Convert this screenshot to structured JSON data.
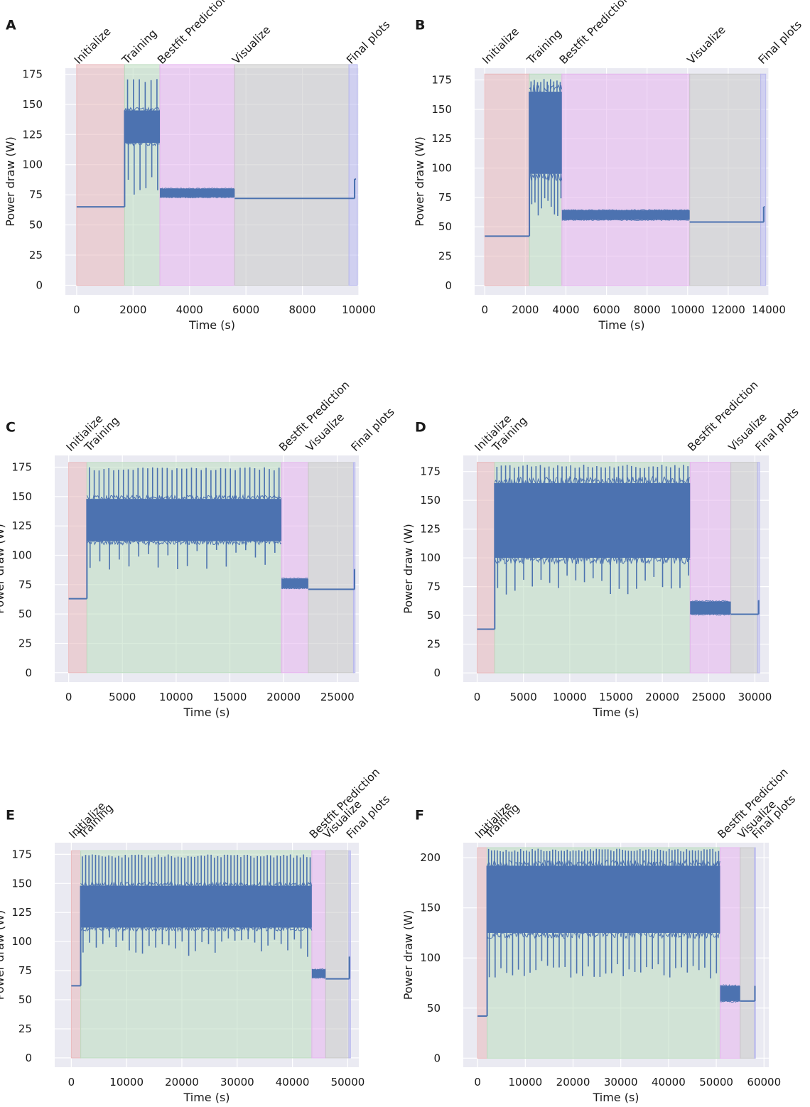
{
  "figure_title": "",
  "chart_data": [
    {
      "panel": "A",
      "type": "line",
      "xlabel": "Time (s)",
      "ylabel": "Power draw (W)",
      "xlim": [
        -400,
        10000
      ],
      "ylim": [
        -8,
        180
      ],
      "xticks": [
        0,
        2000,
        4000,
        6000,
        8000,
        10000
      ],
      "yticks": [
        0,
        25,
        50,
        75,
        100,
        125,
        150,
        175
      ],
      "phases": [
        {
          "label": "Initialize",
          "start": 0,
          "end": 1700,
          "color": "#e8b8bb"
        },
        {
          "label": "Training",
          "start": 1700,
          "end": 2950,
          "color": "#bcdcc0"
        },
        {
          "label": "Bestfit Prediction",
          "start": 2950,
          "end": 5600,
          "color": "#e6b4ee"
        },
        {
          "label": "Visualize",
          "start": 5600,
          "end": 9650,
          "color": "#c8c8c8"
        },
        {
          "label": "Final plots",
          "start": 9650,
          "end": 9950,
          "color": "#b9b9ee"
        }
      ],
      "phase_top": 183,
      "series": [
        {
          "name": "Power draw",
          "segments": [
            {
              "kind": "flat",
              "start": 0,
              "end": 1700,
              "value": 65
            },
            {
              "kind": "band",
              "start": 1700,
              "end": 2950,
              "low": 118,
              "high": 145,
              "spike_max": 171,
              "spike_min": 72,
              "n_spikes": 6
            },
            {
              "kind": "band",
              "start": 2950,
              "end": 5600,
              "low": 73,
              "high": 80,
              "spike_max": 83,
              "spike_min": 70,
              "n_spikes": 0
            },
            {
              "kind": "flat",
              "start": 5600,
              "end": 9850,
              "value": 72
            },
            {
              "kind": "flat",
              "start": 9850,
              "end": 9900,
              "value": 88
            }
          ]
        }
      ]
    },
    {
      "panel": "B",
      "type": "line",
      "xlabel": "Time (s)",
      "ylabel": "Power draw (W)",
      "xlim": [
        -500,
        14000
      ],
      "ylim": [
        -8,
        185
      ],
      "xticks": [
        0,
        2000,
        4000,
        6000,
        8000,
        10000,
        12000,
        14000
      ],
      "yticks": [
        0,
        25,
        50,
        75,
        100,
        125,
        150,
        175
      ],
      "phases": [
        {
          "label": "Initialize",
          "start": 0,
          "end": 2200,
          "color": "#e8b8bb"
        },
        {
          "label": "Training",
          "start": 2200,
          "end": 3800,
          "color": "#bcdcc0"
        },
        {
          "label": "Bestfit Prediction",
          "start": 3800,
          "end": 10100,
          "color": "#e6b4ee"
        },
        {
          "label": "Visualize",
          "start": 10100,
          "end": 13600,
          "color": "#c8c8c8"
        },
        {
          "label": "Final plots",
          "start": 13600,
          "end": 13850,
          "color": "#b9b9ee"
        }
      ],
      "phase_top": 180,
      "series": [
        {
          "name": "Power draw",
          "segments": [
            {
              "kind": "flat",
              "start": 0,
              "end": 2200,
              "value": 42
            },
            {
              "kind": "band",
              "start": 2200,
              "end": 3800,
              "low": 95,
              "high": 165,
              "spike_max": 176,
              "spike_min": 58,
              "n_spikes": 10
            },
            {
              "kind": "band",
              "start": 3800,
              "end": 10100,
              "low": 56,
              "high": 64,
              "spike_max": 68,
              "spike_min": 54,
              "n_spikes": 0
            },
            {
              "kind": "flat",
              "start": 10100,
              "end": 13750,
              "value": 54
            },
            {
              "kind": "flat",
              "start": 13750,
              "end": 13800,
              "value": 67
            }
          ]
        }
      ]
    },
    {
      "panel": "C",
      "type": "line",
      "xlabel": "Time (s)",
      "ylabel": "Power draw (W)",
      "xlim": [
        -1300,
        27000
      ],
      "ylim": [
        -8,
        185
      ],
      "xticks": [
        0,
        5000,
        10000,
        15000,
        20000,
        25000
      ],
      "yticks": [
        0,
        25,
        50,
        75,
        100,
        125,
        150,
        175
      ],
      "phases": [
        {
          "label": "Initialize",
          "start": 0,
          "end": 1700,
          "color": "#e8b8bb"
        },
        {
          "label": "Training",
          "start": 1700,
          "end": 19800,
          "color": "#bcdcc0"
        },
        {
          "label": "Bestfit Prediction",
          "start": 19800,
          "end": 22300,
          "color": "#e6b4ee"
        },
        {
          "label": "Visualize",
          "start": 22300,
          "end": 26500,
          "color": "#c8c8c8"
        },
        {
          "label": "Final plots",
          "start": 26500,
          "end": 26650,
          "color": "#b9b9ee"
        }
      ],
      "phase_top": 179,
      "series": [
        {
          "name": "Power draw",
          "segments": [
            {
              "kind": "flat",
              "start": 0,
              "end": 1700,
              "value": 63
            },
            {
              "kind": "band",
              "start": 1700,
              "end": 19800,
              "low": 112,
              "high": 148,
              "spike_max": 175,
              "spike_min": 87,
              "n_spikes": 40
            },
            {
              "kind": "band",
              "start": 19800,
              "end": 22300,
              "low": 72,
              "high": 80,
              "spike_max": 82,
              "spike_min": 71,
              "n_spikes": 0
            },
            {
              "kind": "flat",
              "start": 22300,
              "end": 26600,
              "value": 71
            },
            {
              "kind": "flat",
              "start": 26600,
              "end": 26650,
              "value": 88
            }
          ]
        }
      ]
    },
    {
      "panel": "D",
      "type": "line",
      "xlabel": "Time (s)",
      "ylabel": "Power draw (W)",
      "xlim": [
        -1500,
        31500
      ],
      "ylim": [
        -8,
        189
      ],
      "xticks": [
        0,
        5000,
        10000,
        15000,
        20000,
        25000,
        30000
      ],
      "yticks": [
        0,
        25,
        50,
        75,
        100,
        125,
        150,
        175
      ],
      "phases": [
        {
          "label": "Initialize",
          "start": 0,
          "end": 1900,
          "color": "#e8b8bb"
        },
        {
          "label": "Training",
          "start": 1900,
          "end": 23000,
          "color": "#bcdcc0"
        },
        {
          "label": "Bestfit Prediction",
          "start": 23000,
          "end": 27400,
          "color": "#e6b4ee"
        },
        {
          "label": "Visualize",
          "start": 27400,
          "end": 30300,
          "color": "#c8c8c8"
        },
        {
          "label": "Final plots",
          "start": 30300,
          "end": 30500,
          "color": "#b9b9ee"
        }
      ],
      "phase_top": 183,
      "series": [
        {
          "name": "Power draw",
          "segments": [
            {
              "kind": "flat",
              "start": 0,
              "end": 1900,
              "value": 38
            },
            {
              "kind": "band",
              "start": 1900,
              "end": 23000,
              "low": 100,
              "high": 165,
              "spike_max": 181,
              "spike_min": 67,
              "n_spikes": 45
            },
            {
              "kind": "band",
              "start": 23000,
              "end": 27400,
              "low": 51,
              "high": 62,
              "spike_max": 63,
              "spike_min": 50,
              "n_spikes": 0
            },
            {
              "kind": "flat",
              "start": 27400,
              "end": 30400,
              "value": 51
            },
            {
              "kind": "flat",
              "start": 30400,
              "end": 30450,
              "value": 63
            }
          ]
        }
      ]
    },
    {
      "panel": "E",
      "type": "line",
      "xlabel": "Time (s)",
      "ylabel": "Power draw (W)",
      "xlim": [
        -3000,
        52000
      ],
      "ylim": [
        -8,
        185
      ],
      "xticks": [
        0,
        10000,
        20000,
        30000,
        40000,
        50000
      ],
      "yticks": [
        0,
        25,
        50,
        75,
        100,
        125,
        150,
        175
      ],
      "phases": [
        {
          "label": "Initialize",
          "start": 0,
          "end": 1700,
          "color": "#e8b8bb"
        },
        {
          "label": "Training",
          "start": 1700,
          "end": 43500,
          "color": "#bcdcc0"
        },
        {
          "label": "Bestfit Prediction",
          "start": 43500,
          "end": 46000,
          "color": "#e6b4ee"
        },
        {
          "label": "Visualize",
          "start": 46000,
          "end": 50200,
          "color": "#c8c8c8"
        },
        {
          "label": "Final plots",
          "start": 50200,
          "end": 50500,
          "color": "#b9b9ee"
        }
      ],
      "phase_top": 178,
      "series": [
        {
          "name": "Power draw",
          "segments": [
            {
              "kind": "flat",
              "start": 0,
              "end": 1700,
              "value": 62
            },
            {
              "kind": "band",
              "start": 1700,
              "end": 43500,
              "low": 112,
              "high": 148,
              "spike_max": 175,
              "spike_min": 86,
              "n_spikes": 70
            },
            {
              "kind": "band",
              "start": 43500,
              "end": 46000,
              "low": 69,
              "high": 76,
              "spike_max": 78,
              "spike_min": 68,
              "n_spikes": 0
            },
            {
              "kind": "flat",
              "start": 46000,
              "end": 50300,
              "value": 68
            },
            {
              "kind": "flat",
              "start": 50300,
              "end": 50350,
              "value": 87
            }
          ]
        }
      ]
    },
    {
      "panel": "F",
      "type": "line",
      "xlabel": "Time (s)",
      "ylabel": "Power draw (W)",
      "xlim": [
        -3000,
        61000
      ],
      "ylim": [
        -9,
        215
      ],
      "xticks": [
        0,
        10000,
        20000,
        30000,
        40000,
        50000,
        60000
      ],
      "yticks": [
        0,
        50,
        100,
        150,
        200
      ],
      "phases": [
        {
          "label": "Initialize",
          "start": 0,
          "end": 2000,
          "color": "#e8b8bb"
        },
        {
          "label": "Training",
          "start": 2000,
          "end": 50800,
          "color": "#bcdcc0"
        },
        {
          "label": "Bestfit Prediction",
          "start": 50800,
          "end": 55000,
          "color": "#e6b4ee"
        },
        {
          "label": "Visualize",
          "start": 55000,
          "end": 58000,
          "color": "#c8c8c8"
        },
        {
          "label": "Final plots",
          "start": 58000,
          "end": 58200,
          "color": "#b9b9ee"
        }
      ],
      "phase_top": 210,
      "series": [
        {
          "name": "Power draw",
          "segments": [
            {
              "kind": "flat",
              "start": 0,
              "end": 2000,
              "value": 42
            },
            {
              "kind": "band",
              "start": 2000,
              "end": 50800,
              "low": 125,
              "high": 192,
              "spike_max": 209,
              "spike_min": 79,
              "n_spikes": 80
            },
            {
              "kind": "band",
              "start": 50800,
              "end": 55000,
              "low": 57,
              "high": 72,
              "spike_max": 73,
              "spike_min": 56,
              "n_spikes": 0
            },
            {
              "kind": "flat",
              "start": 55000,
              "end": 58100,
              "value": 57
            },
            {
              "kind": "flat",
              "start": 58100,
              "end": 58150,
              "value": 72
            }
          ]
        }
      ]
    }
  ]
}
